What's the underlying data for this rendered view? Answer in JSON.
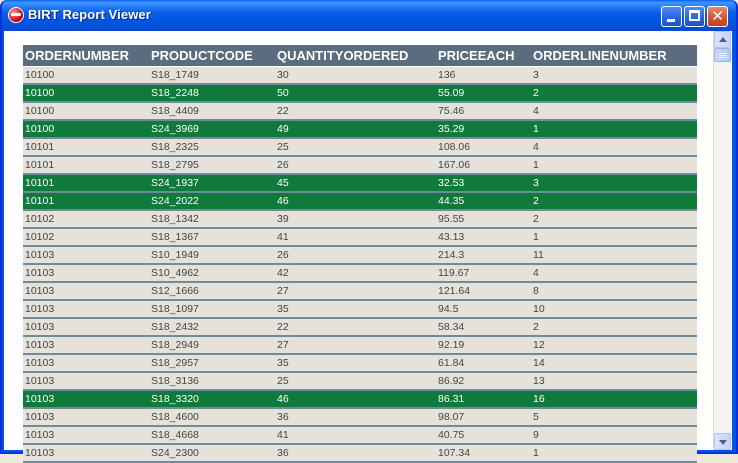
{
  "window": {
    "title": "BIRT Report Viewer",
    "app_icon": "birt-app-icon"
  },
  "table": {
    "headers": [
      "ORDERNUMBER",
      "PRODUCTCODE",
      "QUANTITYORDERED",
      "PRICEEACH",
      "ORDERLINENUMBER"
    ],
    "rows": [
      [
        "10100",
        "S18_1749",
        "30",
        "136",
        "3"
      ],
      [
        "10100",
        "S18_2248",
        "50",
        "55.09",
        "2"
      ],
      [
        "10100",
        "S18_4409",
        "22",
        "75.46",
        "4"
      ],
      [
        "10100",
        "S24_3969",
        "49",
        "35.29",
        "1"
      ],
      [
        "10101",
        "S18_2325",
        "25",
        "108.06",
        "4"
      ],
      [
        "10101",
        "S18_2795",
        "26",
        "167.06",
        "1"
      ],
      [
        "10101",
        "S24_1937",
        "45",
        "32.53",
        "3"
      ],
      [
        "10101",
        "S24_2022",
        "46",
        "44.35",
        "2"
      ],
      [
        "10102",
        "S18_1342",
        "39",
        "95.55",
        "2"
      ],
      [
        "10102",
        "S18_1367",
        "41",
        "43.13",
        "1"
      ],
      [
        "10103",
        "S10_1949",
        "26",
        "214.3",
        "11"
      ],
      [
        "10103",
        "S10_4962",
        "42",
        "119.67",
        "4"
      ],
      [
        "10103",
        "S12_1666",
        "27",
        "121.64",
        "8"
      ],
      [
        "10103",
        "S18_1097",
        "35",
        "94.5",
        "10"
      ],
      [
        "10103",
        "S18_2432",
        "22",
        "58.34",
        "2"
      ],
      [
        "10103",
        "S18_2949",
        "27",
        "92.19",
        "12"
      ],
      [
        "10103",
        "S18_2957",
        "35",
        "61.84",
        "14"
      ],
      [
        "10103",
        "S18_3136",
        "25",
        "86.92",
        "13"
      ],
      [
        "10103",
        "S18_3320",
        "46",
        "86.31",
        "16"
      ],
      [
        "10103",
        "S18_4600",
        "36",
        "98.07",
        "5"
      ],
      [
        "10103",
        "S18_4668",
        "41",
        "40.75",
        "9"
      ],
      [
        "10103",
        "S24_2300",
        "36",
        "107.34",
        "1"
      ]
    ],
    "highlighted_rows": [
      1,
      3,
      6,
      7,
      18
    ],
    "colors": {
      "header_bg": "#5a6d7f",
      "row_bg": "#e6e2d9",
      "highlight_bg": "#0f7a3a",
      "row_border": "#6e8b9f"
    }
  }
}
